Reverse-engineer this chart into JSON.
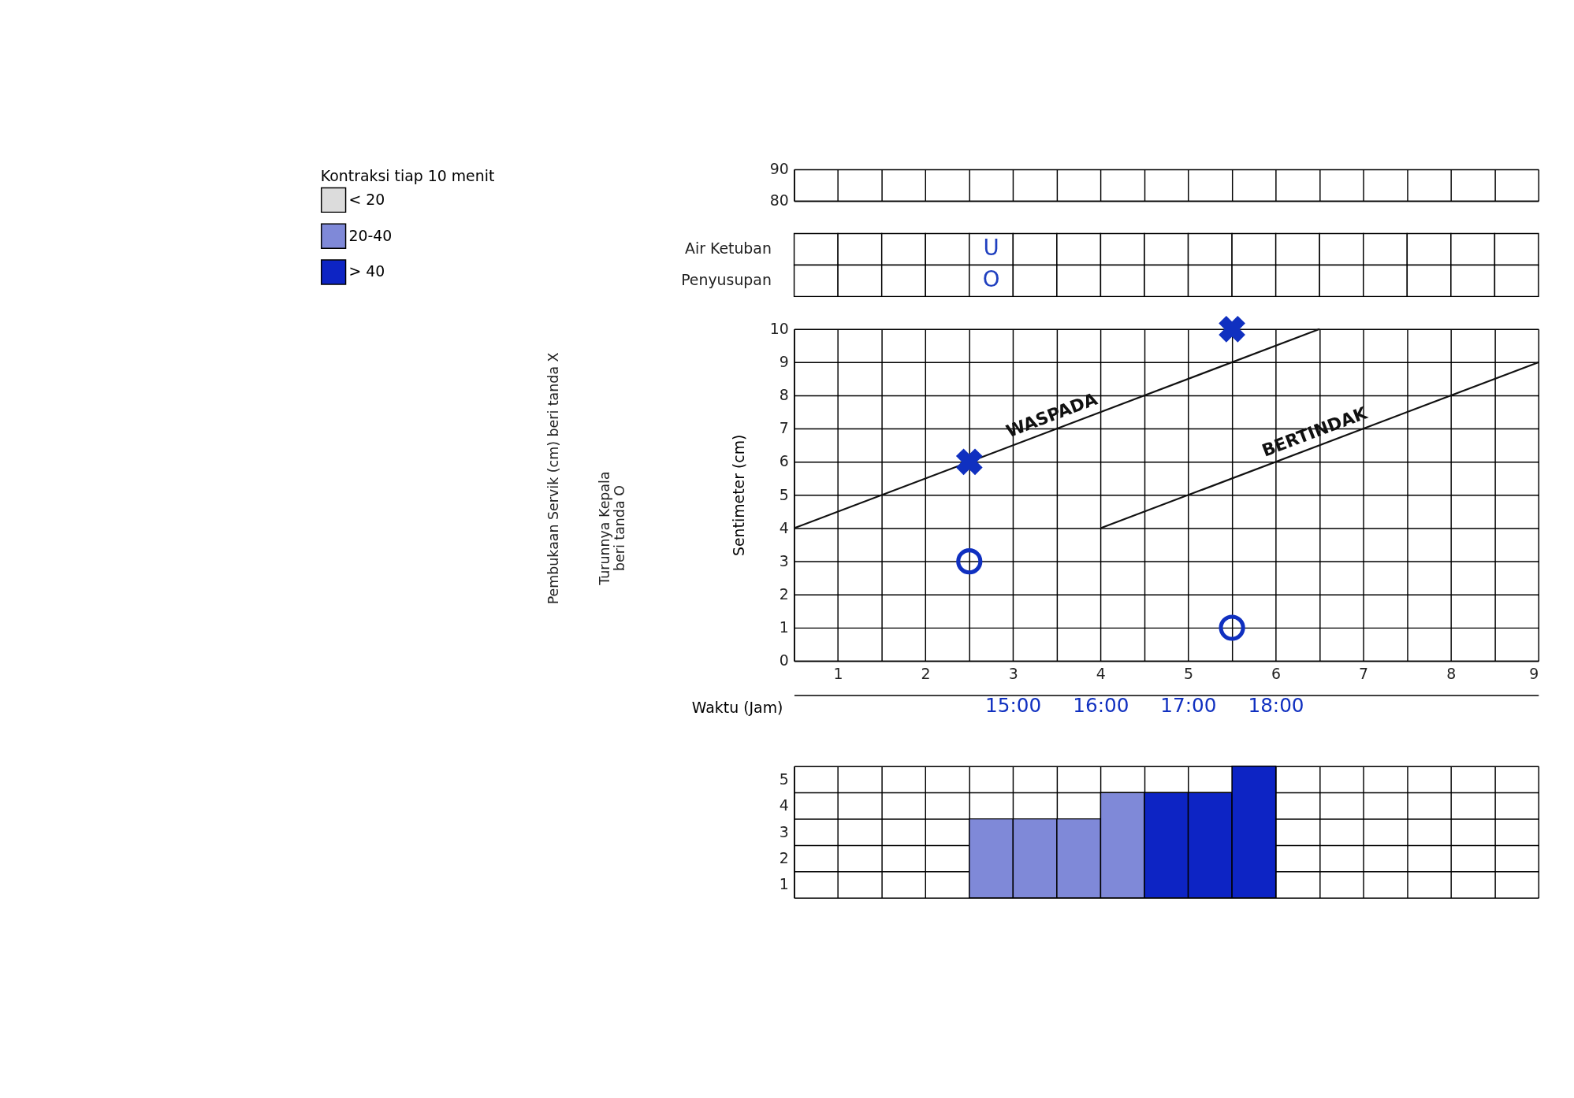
{
  "chart_data": [
    {
      "type": "line",
      "xlim": [
        0,
        8.5
      ],
      "ylim": [
        80,
        90
      ],
      "yticks": [
        80,
        90
      ],
      "tick_labels": "y",
      "grid": true,
      "xticks": [
        {
          "value": 0,
          "label": null
        },
        {
          "value": 0.5,
          "label": null
        },
        {
          "value": 1,
          "label": null
        },
        {
          "value": 1.5,
          "label": null
        },
        {
          "value": 2,
          "label": null
        },
        {
          "value": 2.5,
          "label": null
        },
        {
          "value": 3,
          "label": null
        },
        {
          "value": 3.5,
          "label": null
        },
        {
          "value": 4,
          "label": null
        },
        {
          "value": 4.5,
          "label": null
        },
        {
          "value": 5,
          "label": null
        },
        {
          "value": 5.5,
          "label": null
        },
        {
          "value": 6,
          "label": null
        },
        {
          "value": 6.5,
          "label": null
        },
        {
          "value": 7,
          "label": null
        },
        {
          "value": 7.5,
          "label": null
        },
        {
          "value": 8,
          "label": null
        },
        {
          "value": 8.5,
          "label": null
        }
      ]
    },
    {
      "type": "heatmap",
      "color": "#1f3fbf",
      "categories": [
        null,
        null,
        null,
        null,
        null,
        null,
        null,
        null,
        null,
        null,
        null,
        null,
        null,
        null,
        null,
        null,
        null
      ],
      "y_categories": [
        "Air Ketuban",
        "Penyusupan"
      ],
      "cells": [
        [
          null,
          null,
          null,
          null,
          null,
          null,
          null,
          null,
          null,
          null,
          null,
          null,
          null,
          null,
          null,
          null,
          null
        ],
        [
          null,
          null,
          null,
          null,
          null,
          null,
          null,
          null,
          null,
          null,
          null,
          null,
          null,
          null,
          null,
          null,
          null
        ]
      ],
      "cell_labels": [
        [
          null,
          null,
          null,
          null,
          "U",
          null,
          null,
          null,
          null,
          null,
          null,
          null,
          null,
          null,
          null,
          null,
          null
        ],
        [
          null,
          null,
          null,
          null,
          "O",
          null,
          null,
          null,
          null,
          null,
          null,
          null,
          null,
          null,
          null,
          null,
          null
        ]
      ]
    },
    {
      "type": "line",
      "xlim": [
        0,
        8.5
      ],
      "ylim": [
        0,
        10
      ],
      "yticks": [
        0,
        1,
        2,
        3,
        4,
        5,
        6,
        7,
        8,
        9,
        10
      ],
      "grid": true,
      "ylabel": "Sentimeter (cm)",
      "xticks": [
        {
          "value": 0,
          "label": null
        },
        {
          "value": 0.5,
          "label": "1"
        },
        {
          "value": 1,
          "label": null
        },
        {
          "value": 1.5,
          "label": "2"
        },
        {
          "value": 2,
          "label": null
        },
        {
          "value": 2.5,
          "label": "3"
        },
        {
          "value": 3,
          "label": null
        },
        {
          "value": 3.5,
          "label": "4"
        },
        {
          "value": 4,
          "label": null
        },
        {
          "value": 4.5,
          "label": "5"
        },
        {
          "value": 5,
          "label": null
        },
        {
          "value": 5.5,
          "label": "6"
        },
        {
          "value": 6,
          "label": null
        },
        {
          "value": 6.5,
          "label": "7"
        },
        {
          "value": 7,
          "label": null
        },
        {
          "value": 7.5,
          "label": "8"
        },
        {
          "value": 8,
          "label": null
        },
        {
          "value": 8.5,
          "label": "9"
        }
      ],
      "x2label": "Waktu (Jam)",
      "x2lim": [
        12.5,
        21
      ],
      "x2ticks": [
        {
          "value": 15,
          "label": "15:00"
        },
        {
          "value": 16,
          "label": "16:00"
        },
        {
          "value": 17,
          "label": "17:00"
        },
        {
          "value": 18,
          "label": "18:00"
        }
      ],
      "annotations": [
        "Pembukaan Servik (cm) beri tanda X",
        "Turunnya Kepala\nberi tanda O"
      ],
      "series": [
        {
          "name": "WASPADA",
          "type": "line",
          "line_style": "solid",
          "color": "#111111",
          "x": [
            0,
            6
          ],
          "values": [
            4,
            10
          ]
        },
        {
          "name": "BERTINDAK",
          "type": "line",
          "line_style": "solid",
          "color": "#111111",
          "x": [
            3.5,
            8.5
          ],
          "values": [
            4,
            9
          ]
        },
        {
          "type": "scatter",
          "marker": "cross",
          "color": "#1030c0",
          "x": [
            2,
            5
          ],
          "values": [
            6,
            10
          ]
        },
        {
          "type": "scatter",
          "marker": "circle",
          "color": "#1030c0",
          "x": [
            2,
            5
          ],
          "values": [
            3,
            1
          ]
        }
      ]
    },
    {
      "type": "bar",
      "categories": [
        null,
        null,
        null,
        null,
        null,
        null,
        null,
        null,
        null,
        null,
        null,
        null,
        null,
        null,
        null,
        null,
        null
      ],
      "ylim": [
        0,
        5
      ],
      "legend": "left",
      "legend_title": "Kontraksi tiap 10 menit",
      "grid": true,
      "yticks": [
        1,
        2,
        3,
        4,
        5
      ],
      "series": [
        {
          "name": "< 20",
          "color": "#dcdcdc",
          "values": [
            null,
            null,
            null,
            null,
            null,
            null,
            null,
            null,
            null,
            null,
            null,
            null,
            null,
            null,
            null,
            null,
            null
          ]
        },
        {
          "name": "20-40",
          "color": "#7f89d8",
          "values": [
            null,
            null,
            null,
            null,
            3,
            3,
            3,
            4,
            null,
            null,
            null,
            null,
            null,
            null,
            null,
            null,
            null
          ]
        },
        {
          "name": "> 40",
          "color": "#0d24c4",
          "values": [
            null,
            null,
            null,
            null,
            null,
            null,
            null,
            null,
            4,
            4,
            5,
            null,
            null,
            null,
            null,
            null,
            null
          ]
        }
      ]
    }
  ]
}
